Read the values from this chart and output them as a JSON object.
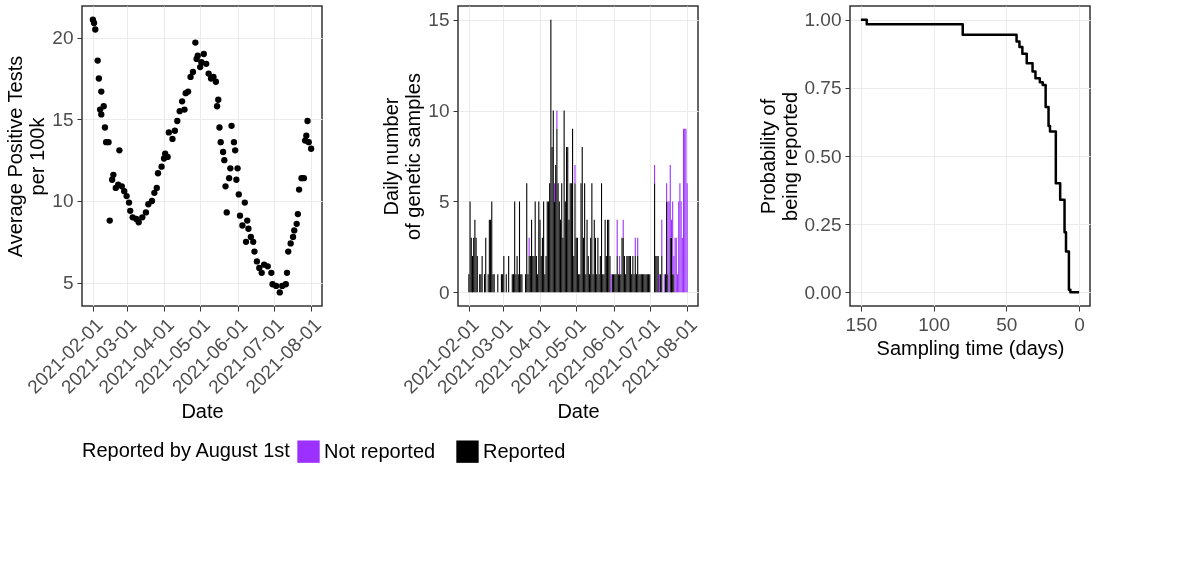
{
  "chart_data": [
    {
      "type": "scatter",
      "xlabel": "Date",
      "ylabel": "Average Positive Tests\nper 100k",
      "marker": "circle",
      "grid": true,
      "xlim": [
        "2021-01-23",
        "2021-08-10"
      ],
      "xticks": [
        "2021-02-01",
        "2021-03-01",
        "2021-04-01",
        "2021-05-01",
        "2021-06-01",
        "2021-07-01",
        "2021-08-01"
      ],
      "ylim": [
        3.57,
        21.94
      ],
      "yticks": [
        5,
        10,
        15,
        20
      ],
      "x": [
        "2021-02-01",
        "2021-02-02",
        "2021-02-03",
        "2021-02-05",
        "2021-02-06",
        "2021-02-07",
        "2021-02-08",
        "2021-02-08",
        "2021-02-10",
        "2021-02-11",
        "2021-02-12",
        "2021-02-14",
        "2021-02-15",
        "2021-02-17",
        "2021-02-18",
        "2021-02-20",
        "2021-02-22",
        "2021-02-23",
        "2021-02-25",
        "2021-02-27",
        "2021-03-01",
        "2021-03-03",
        "2021-03-04",
        "2021-03-06",
        "2021-03-09",
        "2021-03-11",
        "2021-03-14",
        "2021-03-17",
        "2021-03-19",
        "2021-03-22",
        "2021-03-24",
        "2021-03-26",
        "2021-03-27",
        "2021-03-30",
        "2021-04-01",
        "2021-04-02",
        "2021-04-04",
        "2021-04-05",
        "2021-04-08",
        "2021-04-10",
        "2021-04-12",
        "2021-04-14",
        "2021-04-16",
        "2021-04-18",
        "2021-04-19",
        "2021-04-21",
        "2021-04-23",
        "2021-04-25",
        "2021-04-27",
        "2021-04-28",
        "2021-04-29",
        "2021-05-01",
        "2021-05-02",
        "2021-05-04",
        "2021-05-06",
        "2021-05-08",
        "2021-05-10",
        "2021-05-12",
        "2021-05-14",
        "2021-05-15",
        "2021-05-16",
        "2021-05-17",
        "2021-05-18",
        "2021-05-20",
        "2021-05-21",
        "2021-05-22",
        "2021-05-23",
        "2021-05-25",
        "2021-05-26",
        "2021-05-27",
        "2021-05-29",
        "2021-05-30",
        "2021-05-31",
        "2021-06-01",
        "2021-06-02",
        "2021-06-03",
        "2021-06-05",
        "2021-06-07",
        "2021-06-08",
        "2021-06-09",
        "2021-06-10",
        "2021-06-12",
        "2021-06-14",
        "2021-06-15",
        "2021-06-17",
        "2021-06-19",
        "2021-06-21",
        "2021-06-23",
        "2021-06-26",
        "2021-06-29",
        "2021-06-30",
        "2021-07-03",
        "2021-07-06",
        "2021-07-08",
        "2021-07-11",
        "2021-07-12",
        "2021-07-13",
        "2021-07-15",
        "2021-07-17",
        "2021-07-18",
        "2021-07-20",
        "2021-07-21",
        "2021-07-22",
        "2021-07-24",
        "2021-07-26",
        "2021-07-27",
        "2021-07-28",
        "2021-07-29",
        "2021-07-30",
        "2021-08-01"
      ],
      "series": [
        {
          "color": "#000000",
          "values": [
            21.1,
            20.9,
            20.5,
            18.6,
            17.5,
            15.6,
            16.7,
            15.3,
            15.8,
            14.5,
            13.6,
            13.6,
            8.8,
            11.3,
            11.6,
            10.8,
            11.0,
            13.1,
            10.9,
            10.6,
            10.3,
            9.9,
            9.4,
            9.0,
            8.9,
            8.7,
            9.0,
            9.3,
            9.8,
            10.0,
            10.5,
            10.8,
            11.7,
            12.1,
            12.6,
            12.9,
            12.7,
            14.2,
            13.8,
            14.3,
            14.9,
            15.5,
            16.1,
            15.6,
            16.6,
            16.7,
            17.6,
            17.9,
            19.7,
            18.7,
            18.9,
            18.2,
            18.5,
            19.0,
            18.4,
            17.8,
            17.5,
            17.6,
            17.3,
            15.8,
            16.2,
            14.5,
            13.6,
            13.0,
            12.5,
            10.9,
            9.3,
            11.4,
            12.0,
            14.6,
            13.6,
            13.1,
            11.3,
            12.0,
            10.4,
            9.1,
            8.5,
            9.9,
            7.5,
            8.8,
            8.3,
            7.8,
            7.5,
            6.9,
            6.3,
            5.9,
            5.6,
            6.1,
            6.0,
            5.6,
            4.9,
            4.8,
            4.4,
            4.8,
            4.9,
            5.6,
            6.9,
            7.4,
            7.8,
            8.2,
            8.6,
            9.2,
            10.7,
            11.4,
            11.4,
            13.7,
            14.0,
            14.9,
            13.6,
            13.2
          ]
        }
      ]
    },
    {
      "type": "bar",
      "stacked": true,
      "xlabel": "Date",
      "ylabel": "Daily number\nof genetic samples",
      "grid": true,
      "legend": "bottom",
      "legend_title": "Reported by August 1st",
      "xlim": [
        "2021-01-23",
        "2021-08-10"
      ],
      "xticks": [
        "2021-02-01",
        "2021-03-01",
        "2021-04-01",
        "2021-05-01",
        "2021-06-01",
        "2021-07-01",
        "2021-08-01"
      ],
      "ylim": [
        -0.75,
        15.75
      ],
      "yticks": [
        0,
        5,
        10,
        15
      ],
      "x": [
        "2021-02-01",
        "2021-02-02",
        "2021-02-03",
        "2021-02-04",
        "2021-02-05",
        "2021-02-06",
        "2021-02-07",
        "2021-02-08",
        "2021-02-09",
        "2021-02-10",
        "2021-02-11",
        "2021-02-12",
        "2021-02-13",
        "2021-02-14",
        "2021-02-15",
        "2021-02-16",
        "2021-02-17",
        "2021-02-18",
        "2021-02-19",
        "2021-02-20",
        "2021-02-21",
        "2021-02-22",
        "2021-02-23",
        "2021-02-24",
        "2021-02-25",
        "2021-02-26",
        "2021-02-27",
        "2021-02-28",
        "2021-03-01",
        "2021-03-02",
        "2021-03-03",
        "2021-03-04",
        "2021-03-05",
        "2021-03-06",
        "2021-03-07",
        "2021-03-08",
        "2021-03-09",
        "2021-03-10",
        "2021-03-11",
        "2021-03-12",
        "2021-03-13",
        "2021-03-14",
        "2021-03-15",
        "2021-03-16",
        "2021-03-17",
        "2021-03-18",
        "2021-03-19",
        "2021-03-20",
        "2021-03-21",
        "2021-03-22",
        "2021-03-23",
        "2021-03-24",
        "2021-03-25",
        "2021-03-26",
        "2021-03-27",
        "2021-03-28",
        "2021-03-29",
        "2021-03-30",
        "2021-03-31",
        "2021-04-01",
        "2021-04-02",
        "2021-04-03",
        "2021-04-04",
        "2021-04-05",
        "2021-04-06",
        "2021-04-07",
        "2021-04-08",
        "2021-04-09",
        "2021-04-10",
        "2021-04-11",
        "2021-04-12",
        "2021-04-13",
        "2021-04-14",
        "2021-04-15",
        "2021-04-16",
        "2021-04-17",
        "2021-04-18",
        "2021-04-19",
        "2021-04-20",
        "2021-04-21",
        "2021-04-22",
        "2021-04-23",
        "2021-04-24",
        "2021-04-25",
        "2021-04-26",
        "2021-04-27",
        "2021-04-28",
        "2021-04-29",
        "2021-04-30",
        "2021-05-01",
        "2021-05-02",
        "2021-05-03",
        "2021-05-04",
        "2021-05-05",
        "2021-05-06",
        "2021-05-07",
        "2021-05-08",
        "2021-05-09",
        "2021-05-10",
        "2021-05-11",
        "2021-05-12",
        "2021-05-13",
        "2021-05-14",
        "2021-05-15",
        "2021-05-16",
        "2021-05-17",
        "2021-05-18",
        "2021-05-19",
        "2021-05-20",
        "2021-05-21",
        "2021-05-22",
        "2021-05-23",
        "2021-05-24",
        "2021-05-25",
        "2021-05-26",
        "2021-05-27",
        "2021-05-28",
        "2021-05-29",
        "2021-05-30",
        "2021-05-31",
        "2021-06-01",
        "2021-06-02",
        "2021-06-03",
        "2021-06-04",
        "2021-06-05",
        "2021-06-06",
        "2021-06-07",
        "2021-06-08",
        "2021-06-09",
        "2021-06-10",
        "2021-06-11",
        "2021-06-12",
        "2021-06-13",
        "2021-06-14",
        "2021-06-15",
        "2021-06-16",
        "2021-06-17",
        "2021-06-18",
        "2021-06-19",
        "2021-06-20",
        "2021-06-21",
        "2021-06-22",
        "2021-06-23",
        "2021-06-24",
        "2021-06-25",
        "2021-06-26",
        "2021-06-27",
        "2021-06-28",
        "2021-06-29",
        "2021-06-30",
        "2021-07-01",
        "2021-07-02",
        "2021-07-03",
        "2021-07-04",
        "2021-07-05",
        "2021-07-06",
        "2021-07-07",
        "2021-07-08",
        "2021-07-09",
        "2021-07-10",
        "2021-07-11",
        "2021-07-12",
        "2021-07-13",
        "2021-07-14",
        "2021-07-15",
        "2021-07-16",
        "2021-07-17",
        "2021-07-18",
        "2021-07-19",
        "2021-07-20",
        "2021-07-21",
        "2021-07-22",
        "2021-07-23",
        "2021-07-24",
        "2021-07-25",
        "2021-07-26",
        "2021-07-27",
        "2021-07-28",
        "2021-07-29",
        "2021-07-30",
        "2021-07-31",
        "2021-08-01"
      ],
      "series": [
        {
          "name": "Reported",
          "color": "#000000",
          "values": [
            1,
            5,
            3,
            2,
            3,
            4,
            3,
            2,
            0,
            1,
            1,
            2,
            0,
            1,
            3,
            0,
            1,
            4,
            4,
            5,
            1,
            1,
            0,
            0,
            1,
            0,
            0,
            1,
            1,
            2,
            0,
            1,
            0,
            2,
            0,
            0,
            1,
            1,
            5,
            1,
            2,
            1,
            5,
            1,
            1,
            0,
            0,
            1,
            6,
            1,
            2,
            2,
            4,
            2,
            2,
            5,
            2,
            1,
            5,
            4,
            2,
            3,
            5,
            1,
            2,
            5,
            5,
            6,
            15,
            8,
            10,
            5,
            7,
            9,
            6,
            5,
            4,
            6,
            3,
            10,
            5,
            8,
            8,
            4,
            6,
            6,
            9,
            2,
            6,
            3,
            3,
            1,
            1,
            6,
            8,
            3,
            6,
            1,
            4,
            2,
            1,
            3,
            6,
            1,
            4,
            3,
            1,
            3,
            1,
            2,
            6,
            1,
            1,
            4,
            2,
            4,
            4,
            2,
            0,
            1,
            1,
            1,
            1,
            2,
            1,
            1,
            1,
            3,
            3,
            2,
            1,
            2,
            2,
            2,
            2,
            1,
            2,
            1,
            2,
            1,
            2,
            1,
            1,
            1,
            1,
            1,
            1,
            1,
            1,
            1,
            1,
            0,
            0,
            0,
            6,
            2,
            2,
            2,
            0,
            1,
            2,
            0,
            0,
            1,
            5,
            1,
            0,
            3,
            3,
            1,
            1,
            0,
            0,
            0,
            0,
            0,
            0,
            0,
            0,
            0,
            0,
            0
          ]
        },
        {
          "name": "Not reported",
          "color": "#9b30ff",
          "values": [
            0,
            0,
            0,
            0,
            0,
            0,
            0,
            0,
            0,
            0,
            0,
            0,
            0,
            0,
            0,
            0,
            0,
            0,
            0,
            0,
            0,
            0,
            0,
            0,
            0,
            0,
            0,
            0,
            0,
            0,
            0,
            0,
            0,
            0,
            0,
            0,
            0,
            0,
            0,
            0,
            0,
            0,
            0,
            0,
            0,
            0,
            0,
            0,
            0,
            0,
            1,
            0,
            0,
            0,
            0,
            0,
            0,
            0,
            0,
            0,
            0,
            0,
            0,
            0,
            0,
            0,
            0,
            0,
            0,
            0,
            0,
            1,
            0,
            1,
            0,
            0,
            0,
            0,
            0,
            0,
            0,
            0,
            0,
            0,
            0,
            0,
            0,
            0,
            1,
            0,
            0,
            0,
            0,
            0,
            0,
            0,
            0,
            0,
            0,
            0,
            0,
            0,
            0,
            0,
            0,
            0,
            0,
            0,
            0,
            0,
            0,
            0,
            0,
            0,
            0,
            0,
            0,
            0,
            1,
            0,
            0,
            0,
            0,
            2,
            0,
            1,
            0,
            0,
            1,
            0,
            0,
            0,
            0,
            0,
            0,
            0,
            0,
            0,
            1,
            0,
            1,
            0,
            0,
            0,
            0,
            0,
            0,
            0,
            0,
            0,
            0,
            0,
            0,
            0,
            1,
            0,
            0,
            0,
            1,
            0,
            2,
            0,
            1,
            0,
            1,
            4,
            5,
            4,
            1,
            4,
            1,
            3,
            3,
            1,
            5,
            6,
            5,
            3,
            9,
            9,
            9,
            6
          ]
        }
      ]
    },
    {
      "type": "step",
      "xlabel": "Sampling time (days)",
      "ylabel": "Probability of\nbeing reported",
      "grid": true,
      "xlim": [
        157.5,
        -7.5
      ],
      "xticks": [
        150,
        100,
        50,
        0
      ],
      "ylim": [
        -0.05,
        1.05
      ],
      "yticks": [
        {
          "value": 0,
          "label": "0.00"
        },
        {
          "value": 0.25,
          "label": "0.25"
        },
        {
          "value": 0.5,
          "label": "0.50"
        },
        {
          "value": 0.75,
          "label": "0.75"
        },
        {
          "value": 1,
          "label": "1.00"
        }
      ],
      "x": [
        150,
        146,
        80,
        43,
        41,
        39,
        36,
        32,
        30,
        27,
        25,
        23,
        21,
        20,
        16,
        13,
        10,
        9,
        7,
        6,
        0
      ],
      "series": [
        {
          "color": "#000000",
          "values": [
            1.0,
            0.983,
            0.945,
            0.92,
            0.9,
            0.875,
            0.84,
            0.81,
            0.785,
            0.77,
            0.76,
            0.68,
            0.61,
            0.59,
            0.4,
            0.34,
            0.22,
            0.15,
            0.01,
            0.0,
            0.0
          ]
        }
      ]
    }
  ]
}
